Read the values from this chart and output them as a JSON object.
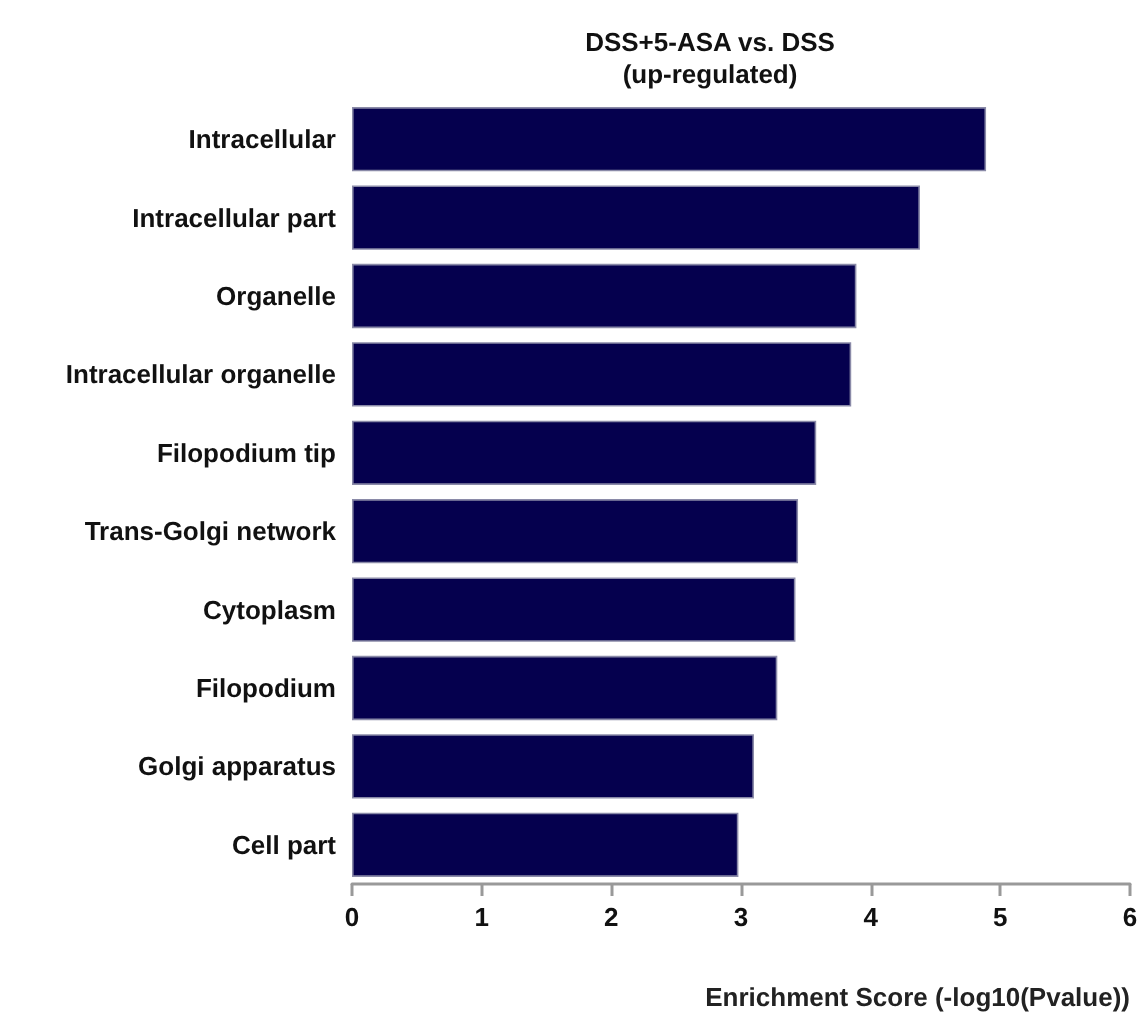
{
  "chart_data": {
    "type": "bar",
    "orientation": "horizontal",
    "title": "DSS+5-ASA vs. DSS\n(up-regulated)",
    "xlabel": "Enrichment Score (-log10(Pvalue))",
    "categories": [
      "Intracellular",
      "Intracellular part",
      "Organelle",
      "Intracellular organelle",
      "Filopodium tip",
      "Trans-Golgi network",
      "Cytoplasm",
      "Filopodium",
      "Golgi apparatus",
      "Cell part"
    ],
    "values": [
      4.89,
      4.38,
      3.89,
      3.85,
      3.58,
      3.44,
      3.42,
      3.28,
      3.1,
      2.98
    ],
    "color": "#05004e",
    "xlim": [
      0,
      6
    ],
    "xticks": [
      0,
      1,
      2,
      3,
      4,
      5,
      6
    ],
    "grid": false
  }
}
